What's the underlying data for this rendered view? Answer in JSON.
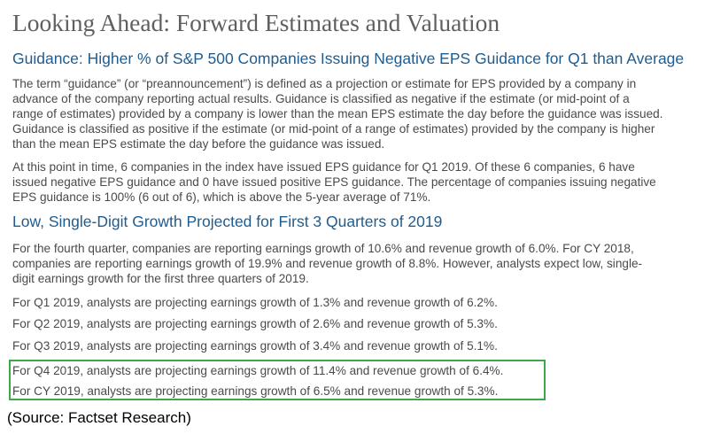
{
  "title": "Looking Ahead: Forward Estimates and Valuation",
  "section1": {
    "heading": "Guidance: Higher % of S&P 500 Companies Issuing Negative EPS Guidance for Q1 than Average",
    "para1": [
      "The term “guidance” (or “preannouncement”) is defined as a projection or estimate for EPS provided by a company in",
      "advance of the company reporting actual results. Guidance is classified as negative if the estimate (or mid-point of a",
      "range of estimates) provided by a company is lower than the mean EPS estimate the day before the guidance was issued.",
      "Guidance is classified as positive if the estimate (or mid-point of a range of estimates) provided by the company is higher",
      "than the mean EPS estimate the day before the guidance was issued."
    ],
    "para2": [
      "At this point in time, 6 companies in the index have issued EPS guidance for Q1 2019. Of these 6 companies, 6 have",
      "issued negative EPS guidance and 0 have issued positive EPS guidance. The percentage of companies issuing negative",
      "EPS guidance is 100% (6 out of 6), which is above the 5-year average of 71%."
    ]
  },
  "section2": {
    "heading": "Low, Single-Digit Growth Projected for First 3 Quarters of 2019",
    "para1": [
      "For the fourth quarter, companies are reporting earnings growth of 10.6% and revenue growth of 6.0%. For CY 2018,",
      "companies are reporting earnings growth of 19.9% and revenue growth of 8.8%. However, analysts expect low, single-",
      "digit earnings growth for the first three quarters of 2019."
    ],
    "q1": "For Q1 2019, analysts are projecting earnings growth of 1.3% and revenue growth of 6.2%.",
    "q2": "For Q2 2019, analysts are projecting earnings growth of 2.6% and revenue growth of 5.3%.",
    "q3": "For Q3 2019, analysts are projecting earnings growth of 3.4% and revenue growth of 5.1%.",
    "q4": "For Q4 2019, analysts are projecting earnings growth of 11.4% and revenue growth of 6.4%.",
    "cy": "For CY 2019, analysts are projecting earnings growth of 6.5% and revenue growth of 5.3%."
  },
  "source": "(Source: Factset Research)",
  "colors": {
    "heading_blue": "#1f5c8f",
    "highlight_green": "#3aa94a"
  }
}
